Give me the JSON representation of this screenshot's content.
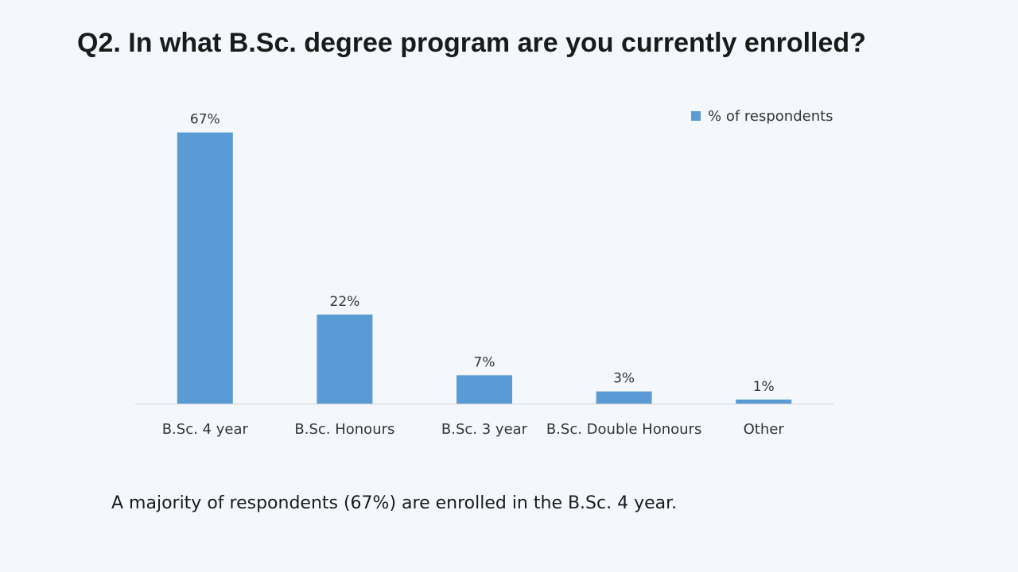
{
  "slide": {
    "title": "Q2. In what B.Sc. degree program are you currently enrolled?",
    "caption": "A majority of respondents (67%) are enrolled in the B.Sc. 4 year."
  },
  "chart_data": {
    "type": "bar",
    "categories": [
      "B.Sc. 4 year",
      "B.Sc. Honours",
      "B.Sc. 3 year",
      "B.Sc. Double Honours",
      "Other"
    ],
    "series": [
      {
        "name": "% of respondents",
        "values": [
          67,
          22,
          7,
          3,
          1
        ],
        "labels": [
          "67%",
          "22%",
          "7%",
          "3%",
          "1%"
        ],
        "color": "#5b9bd5"
      }
    ],
    "ylim": [
      0,
      70
    ],
    "grid": false,
    "legend": "top-right",
    "data_labels": true
  }
}
